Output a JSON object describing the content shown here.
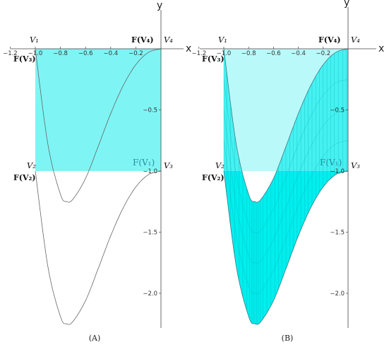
{
  "chart_data": [
    {
      "type": "area",
      "caption": "(A)",
      "xlabel": "x",
      "ylabel": "y",
      "xlim": [
        -1.2,
        0.0
      ],
      "ylim": [
        -2.25,
        0.0
      ],
      "x_ticks": [
        "−1.2",
        "−1.0",
        "−0.8",
        "−0.6",
        "−0.4",
        "−0.2"
      ],
      "y_ticks": [
        "−0.5",
        "−1.0",
        "−1.5",
        "−2.0"
      ],
      "shaded_region": {
        "x": [
          -1.0,
          0.0
        ],
        "y": [
          -1.0,
          0.0
        ],
        "color": "#7ff4f4"
      },
      "vertex_labels": [
        {
          "id": "V1",
          "text": "V₁"
        },
        {
          "id": "V2",
          "text": "V₂"
        },
        {
          "id": "V3",
          "text": "V₃"
        },
        {
          "id": "V4",
          "text": "V₄"
        },
        {
          "id": "FV3",
          "text": "F(V₃)"
        },
        {
          "id": "FV2",
          "text": "F(V₂)"
        },
        {
          "id": "FV4",
          "text": "F(V₄)"
        },
        {
          "id": "FV1",
          "text": "F(V₁)"
        }
      ],
      "series": [
        {
          "x": [
            -1.0,
            -0.9,
            -0.8,
            -0.75,
            -0.7,
            -0.6,
            -0.5,
            -0.4,
            -0.3,
            -0.2,
            -0.1,
            0.0
          ],
          "y": [
            0.0,
            -0.78,
            -1.19,
            -1.25,
            -1.23,
            -1.06,
            -0.8,
            -0.53,
            -0.3,
            -0.13,
            -0.03,
            0.0
          ]
        },
        {
          "x": [
            -1.0,
            -0.9,
            -0.8,
            -0.75,
            -0.7,
            -0.6,
            -0.5,
            -0.4,
            -0.3,
            -0.2,
            -0.1,
            0.0
          ],
          "y": [
            -1.0,
            -1.78,
            -2.19,
            -2.25,
            -2.23,
            -2.06,
            -1.8,
            -1.53,
            -1.3,
            -1.13,
            -1.03,
            -1.0
          ]
        }
      ]
    },
    {
      "type": "area",
      "caption": "(B)",
      "xlabel": "x",
      "ylabel": "y",
      "xlim": [
        -1.2,
        0.0
      ],
      "ylim": [
        -2.25,
        0.0
      ],
      "x_ticks": [
        "−1.2",
        "−1.0",
        "−0.8",
        "−0.6",
        "−0.4",
        "−0.2"
      ],
      "y_ticks": [
        "−0.5",
        "−1.0",
        "−1.5",
        "−2.0"
      ],
      "shaded_region": {
        "x": [
          -1.0,
          0.0
        ],
        "y": [
          -1.0,
          0.0
        ],
        "color": "#7ff4f4"
      },
      "image_region_color": "#00eeee",
      "vertex_labels": [
        {
          "id": "V1",
          "text": "V₁"
        },
        {
          "id": "V2",
          "text": "V₂"
        },
        {
          "id": "V3",
          "text": "V₃"
        },
        {
          "id": "V4",
          "text": "V₄"
        },
        {
          "id": "FV3",
          "text": "F(V₃)"
        },
        {
          "id": "FV2",
          "text": "F(V₂)"
        },
        {
          "id": "FV4",
          "text": "F(V₄)"
        },
        {
          "id": "FV1",
          "text": "F(V₁)"
        }
      ],
      "series": [
        {
          "x": [
            -1.0,
            -0.9,
            -0.8,
            -0.75,
            -0.7,
            -0.6,
            -0.5,
            -0.4,
            -0.3,
            -0.2,
            -0.1,
            0.0
          ],
          "y": [
            0.0,
            -0.78,
            -1.19,
            -1.25,
            -1.23,
            -1.06,
            -0.8,
            -0.53,
            -0.3,
            -0.13,
            -0.03,
            0.0
          ]
        },
        {
          "x": [
            -1.0,
            -0.9,
            -0.8,
            -0.75,
            -0.7,
            -0.6,
            -0.5,
            -0.4,
            -0.3,
            -0.2,
            -0.1,
            0.0
          ],
          "y": [
            -1.0,
            -1.78,
            -2.19,
            -2.25,
            -2.23,
            -2.06,
            -1.8,
            -1.53,
            -1.3,
            -1.13,
            -1.03,
            -1.0
          ]
        }
      ]
    }
  ]
}
